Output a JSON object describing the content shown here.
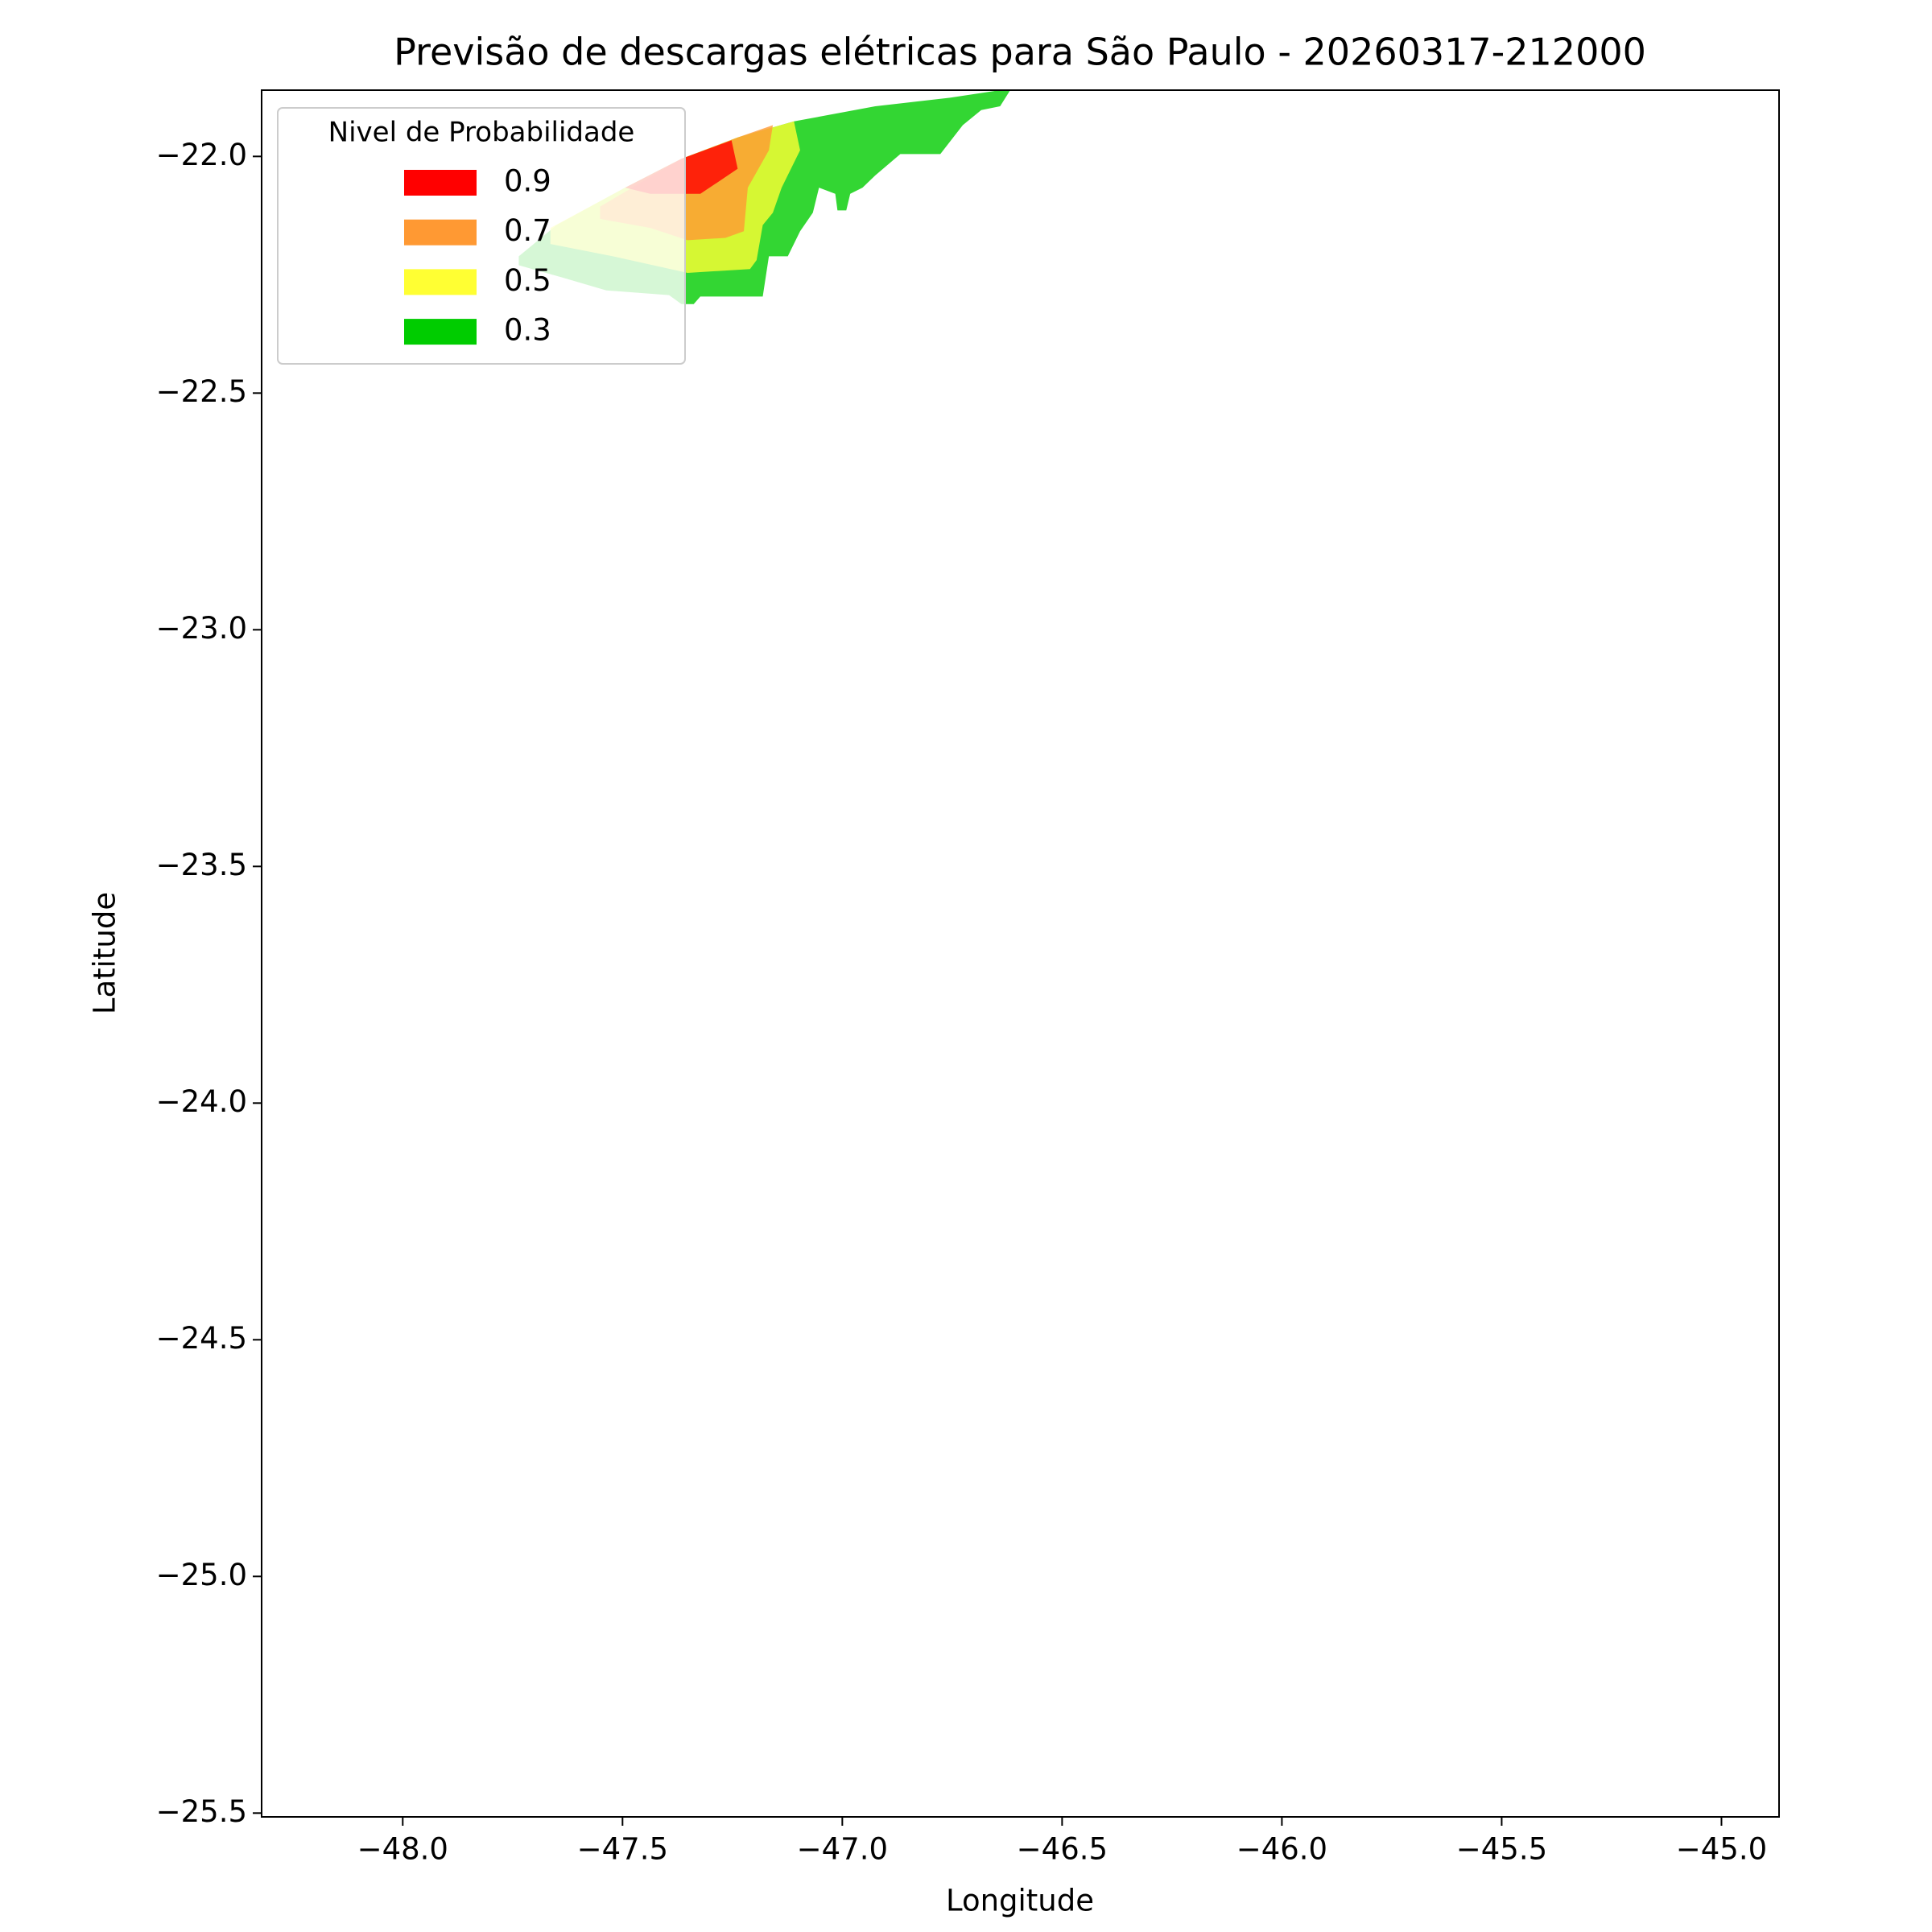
{
  "chart_data": {
    "type": "contour",
    "title": "Previsão de descargas elétricas para São Paulo - 20260317-212000",
    "x_label": "Longitude",
    "y_label": "Latitude",
    "legend_title": "Nivel de Probabilidade",
    "legend_position": "upper left",
    "xlim": [
      -48.321,
      -44.869
    ],
    "ylim": [
      -25.508,
      -21.86
    ],
    "xticks": [
      {
        "value": -48,
        "label": "−48.0"
      },
      {
        "value": -47.5,
        "label": "−47.5"
      },
      {
        "value": -47,
        "label": "−47.0"
      },
      {
        "value": -46.5,
        "label": "−46.5"
      },
      {
        "value": -46,
        "label": "−46.0"
      },
      {
        "value": -45.5,
        "label": "−45.5"
      },
      {
        "value": -45,
        "label": "−45.0"
      }
    ],
    "yticks": [
      {
        "value": -22,
        "label": "−22.0"
      },
      {
        "value": -22.5,
        "label": "−22.5"
      },
      {
        "value": -23,
        "label": "−23.0"
      },
      {
        "value": -23.5,
        "label": "−23.5"
      },
      {
        "value": -24,
        "label": "−24.0"
      },
      {
        "value": -24.5,
        "label": "−24.5"
      },
      {
        "value": -25,
        "label": "−25.0"
      },
      {
        "value": -25.5,
        "label": "−25.5"
      }
    ],
    "series": [
      {
        "name": "0.9",
        "color": "#ff0000",
        "x": [
          -47.494,
          -47.366,
          -47.252,
          -47.238,
          -47.281,
          -47.323,
          -47.437
        ],
        "y": [
          -22.066,
          -22.005,
          -21.966,
          -22.026,
          -22.053,
          -22.079,
          -22.079
        ]
      },
      {
        "name": "0.7",
        "color": "#ff9933",
        "x": [
          -47.551,
          -47.366,
          -47.238,
          -47.158,
          -47.167,
          -47.215,
          -47.224,
          -47.266,
          -47.352,
          -47.437,
          -47.551
        ],
        "y": [
          -22.106,
          -22.005,
          -21.96,
          -21.934,
          -21.987,
          -22.066,
          -22.158,
          -22.172,
          -22.177,
          -22.151,
          -22.132
        ]
      },
      {
        "name": "0.5",
        "color": "#ffff33",
        "x": [
          -47.664,
          -47.494,
          -47.366,
          -47.238,
          -47.11,
          -47.096,
          -47.138,
          -47.158,
          -47.181,
          -47.195,
          -47.21,
          -47.352,
          -47.522,
          -47.664
        ],
        "y": [
          -22.151,
          -22.066,
          -22.005,
          -21.96,
          -21.926,
          -21.987,
          -22.066,
          -22.119,
          -22.145,
          -22.219,
          -22.238,
          -22.246,
          -22.211,
          -22.185
        ]
      },
      {
        "name": "0.3",
        "color": "#00cc00",
        "x": [
          -47.736,
          -47.65,
          -47.494,
          -47.366,
          -47.238,
          -47.11,
          -46.925,
          -46.755,
          -46.641,
          -46.618,
          -46.641,
          -46.684,
          -46.726,
          -46.777,
          -46.868,
          -46.925,
          -46.954,
          -46.982,
          -46.991,
          -47.011,
          -47.016,
          -47.053,
          -47.067,
          -47.096,
          -47.124,
          -47.167,
          -47.181,
          -47.323,
          -47.338,
          -47.366,
          -47.394,
          -47.537,
          -47.636,
          -47.736
        ],
        "y": [
          -22.211,
          -22.145,
          -22.066,
          -22.005,
          -21.96,
          -21.926,
          -21.894,
          -21.876,
          -21.86,
          -21.86,
          -21.894,
          -21.902,
          -21.934,
          -21.995,
          -21.995,
          -22.04,
          -22.066,
          -22.079,
          -22.114,
          -22.114,
          -22.079,
          -22.066,
          -22.119,
          -22.158,
          -22.211,
          -22.211,
          -22.296,
          -22.296,
          -22.312,
          -22.312,
          -22.293,
          -22.283,
          -22.256,
          -22.23
        ]
      }
    ]
  }
}
